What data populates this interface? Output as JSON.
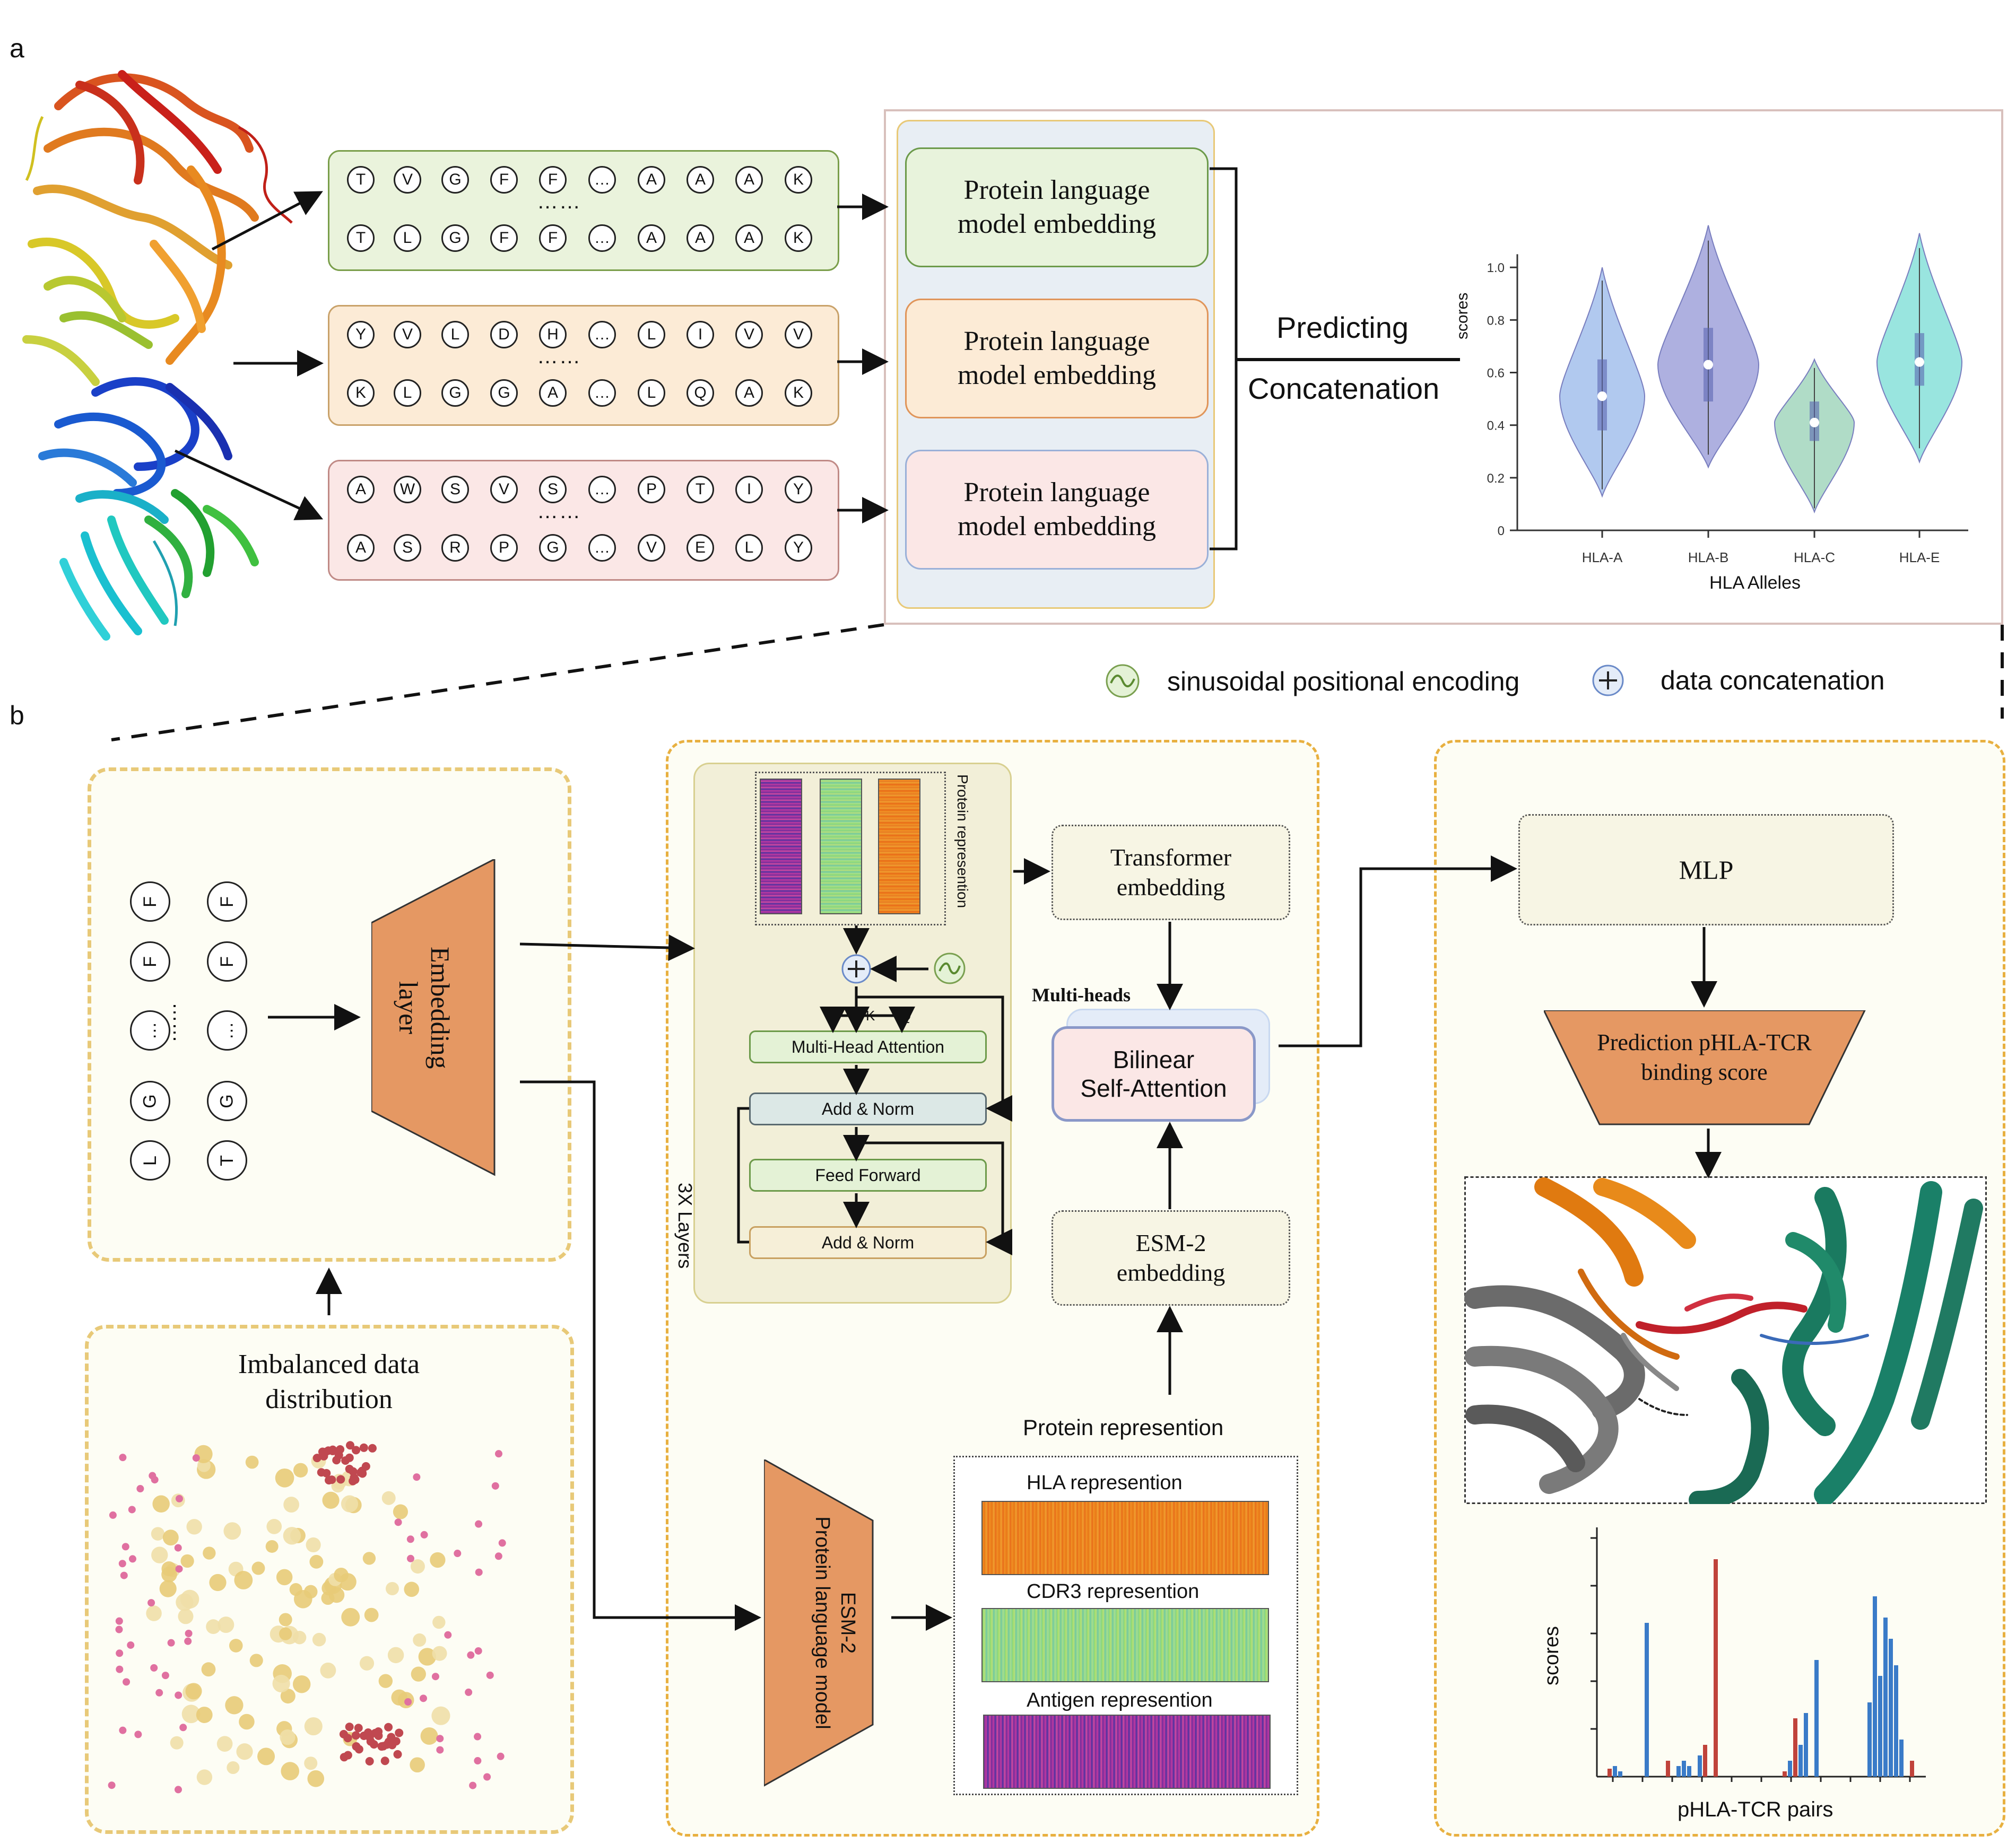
{
  "panel_a": {
    "letter": "a",
    "sequences": [
      {
        "row1": [
          "T",
          "V",
          "G",
          "F",
          "F",
          "…",
          "A",
          "A",
          "A",
          "K"
        ],
        "row2": [
          "T",
          "L",
          "G",
          "F",
          "F",
          "…",
          "A",
          "A",
          "A",
          "K"
        ]
      },
      {
        "row1": [
          "Y",
          "V",
          "L",
          "D",
          "H",
          "…",
          "L",
          "I",
          "V",
          "V"
        ],
        "row2": [
          "K",
          "L",
          "G",
          "G",
          "A",
          "…",
          "L",
          "Q",
          "A",
          "K"
        ]
      },
      {
        "row1": [
          "A",
          "W",
          "S",
          "V",
          "S",
          "…",
          "P",
          "T",
          "I",
          "Y"
        ],
        "row2": [
          "A",
          "S",
          "R",
          "P",
          "G",
          "…",
          "V",
          "E",
          "L",
          "Y"
        ]
      }
    ],
    "dots_label": "……",
    "plm_label_line1": "Protein language",
    "plm_label_line2": "model embedding",
    "predicting_label": "Predicting",
    "concatenation_label": "Concatenation",
    "colors": {
      "green_box": "#eaf3dc",
      "green_border": "#7a9e4a",
      "orange_box": "#fcebd6",
      "orange_border": "#c9a26a",
      "pink_box": "#fbe7e6",
      "pink_border": "#c08a86"
    }
  },
  "chart_data": {
    "type": "violin",
    "categories": [
      "HLA-A",
      "HLA-B",
      "HLA-C",
      "HLA-E"
    ],
    "medians": [
      0.51,
      0.63,
      0.41,
      0.64
    ],
    "q1": [
      0.38,
      0.49,
      0.34,
      0.55
    ],
    "q3": [
      0.65,
      0.77,
      0.49,
      0.75
    ],
    "min": [
      0.13,
      0.24,
      0.07,
      0.26
    ],
    "max": [
      1.0,
      1.16,
      0.65,
      1.13
    ],
    "xlabel": "HLA Alleles",
    "ylabel": "scores",
    "yticks": [
      "0",
      "0.2",
      "0.4",
      "0.6",
      "0.8",
      "1.0"
    ],
    "ylim": [
      0,
      1.2
    ],
    "colors": [
      "#a9c4ee",
      "#a6a8dd",
      "#a8d9c2",
      "#8fe3dc"
    ]
  },
  "legend": {
    "sin_label": "sinusoidal positional encoding",
    "concat_label": "data concatenation"
  },
  "panel_b": {
    "letter": "b",
    "embedding_layer": "Embedding layer",
    "input_col1": [
      "F",
      "F",
      "…",
      "G",
      "L"
    ],
    "input_col2": [
      "F",
      "F",
      "…",
      "G",
      "T"
    ],
    "input_dots": "……",
    "imbalanced_line1": "Imbalanced data",
    "imbalanced_line2": "distribution",
    "protein_representation_vertical": "Protein represention",
    "three_x_layers": "3X Layers",
    "vkq": [
      "V",
      "K",
      "Q"
    ],
    "multi_head_attention": "Multi-Head Attention",
    "add_norm": "Add & Norm",
    "feed_forward": "Feed Forward",
    "transformer_line1": "Transformer",
    "transformer_line2": "embedding",
    "multi_heads": "Multi-heads",
    "bilinear_line1": "Bilinear",
    "bilinear_line2": "Self-Attention",
    "esm2_line1": "ESM-2",
    "esm2_line2": "embedding",
    "esm_model_line1": "ESM-2",
    "esm_model_line2": "Protein language model",
    "protein_represention": "Protein represention",
    "hla_represention": "HLA  represention",
    "cdr3_represention": "CDR3 represention",
    "antigen_represention": "Antigen represention",
    "mlp": "MLP",
    "prediction_line1": "Prediction pHLA-TCR",
    "prediction_line2": "binding score",
    "bar_ylabel": "scores",
    "bar_xlabel": "pHLA-TCR pairs"
  },
  "bar_chart_data": {
    "type": "bar",
    "values_blue": [
      0,
      0,
      2,
      1,
      0,
      0,
      0,
      0,
      29,
      0,
      0,
      0,
      0,
      0,
      2,
      3,
      2,
      0,
      4,
      0,
      0,
      0,
      0,
      0,
      0,
      0,
      0,
      0,
      0,
      0,
      0,
      0,
      0,
      0,
      0,
      3,
      0,
      6,
      12,
      0,
      22,
      0,
      0,
      0,
      0,
      0,
      0,
      0,
      0,
      0,
      14,
      34,
      19,
      30,
      26,
      21,
      7,
      0,
      0,
      0,
      0,
      0
    ],
    "values_red": [
      0,
      1.5,
      0,
      0,
      0,
      0,
      0,
      0,
      0,
      0,
      0,
      0,
      3,
      0,
      0,
      0,
      0,
      0,
      0,
      6,
      0,
      41,
      0,
      0,
      0,
      0,
      0,
      0,
      0,
      0,
      0,
      0,
      0,
      0,
      1,
      0,
      11,
      0,
      0,
      0,
      0,
      0,
      0,
      0,
      0,
      0,
      0,
      0,
      0,
      0,
      0,
      0,
      0,
      0,
      0,
      0,
      0,
      0,
      3,
      0,
      0,
      0
    ],
    "colors": {
      "blue": "#3a7bc8",
      "red": "#c0433b"
    }
  }
}
